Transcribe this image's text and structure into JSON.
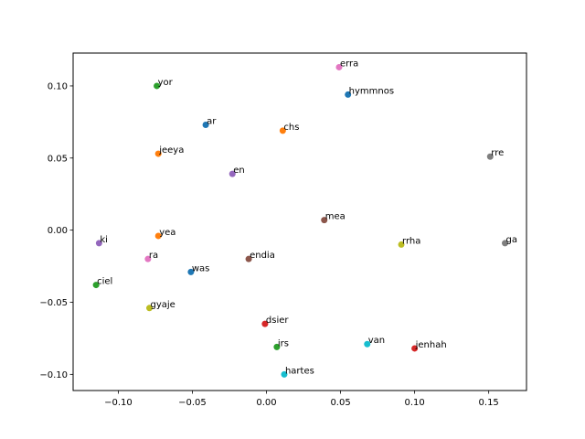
{
  "chart_data": {
    "type": "scatter",
    "title": "",
    "xlabel": "",
    "ylabel": "",
    "xlim": [
      -0.1305,
      0.1755
    ],
    "ylim": [
      -0.1112,
      0.1228
    ],
    "xticks": [
      -0.1,
      -0.05,
      0.0,
      0.05,
      0.1,
      0.15
    ],
    "xtick_labels": [
      "−0.10",
      "−0.05",
      "0.00",
      "0.05",
      "0.10",
      "0.15"
    ],
    "yticks": [
      -0.1,
      -0.05,
      0.0,
      0.05,
      0.1
    ],
    "ytick_labels": [
      "−0.10",
      "−0.05",
      "0.00",
      "0.05",
      "0.10"
    ],
    "grid": false,
    "points": [
      {
        "label": "erra",
        "x": 0.049,
        "y": 0.113,
        "color": "#e377c2"
      },
      {
        "label": "hymmnos",
        "x": 0.055,
        "y": 0.094,
        "color": "#1f77b4"
      },
      {
        "label": "yor",
        "x": -0.074,
        "y": 0.1,
        "color": "#2ca02c"
      },
      {
        "label": "ar",
        "x": -0.041,
        "y": 0.073,
        "color": "#1f77b4"
      },
      {
        "label": "chs",
        "x": 0.011,
        "y": 0.069,
        "color": "#ff7f0e"
      },
      {
        "label": "jeeya",
        "x": -0.073,
        "y": 0.053,
        "color": "#ff7f0e"
      },
      {
        "label": "rre",
        "x": 0.151,
        "y": 0.051,
        "color": "#7f7f7f"
      },
      {
        "label": "en",
        "x": -0.023,
        "y": 0.039,
        "color": "#9467bd"
      },
      {
        "label": "mea",
        "x": 0.039,
        "y": 0.007,
        "color": "#8c564b"
      },
      {
        "label": "yea",
        "x": -0.073,
        "y": -0.004,
        "color": "#ff7f0e"
      },
      {
        "label": "ki",
        "x": -0.113,
        "y": -0.009,
        "color": "#9467bd"
      },
      {
        "label": "ga",
        "x": 0.161,
        "y": -0.009,
        "color": "#7f7f7f"
      },
      {
        "label": "rrha",
        "x": 0.091,
        "y": -0.01,
        "color": "#bcbd22"
      },
      {
        "label": "ra",
        "x": -0.08,
        "y": -0.02,
        "color": "#e377c2"
      },
      {
        "label": "endia",
        "x": -0.012,
        "y": -0.02,
        "color": "#8c564b"
      },
      {
        "label": "was",
        "x": -0.051,
        "y": -0.029,
        "color": "#1f77b4"
      },
      {
        "label": "ciel",
        "x": -0.115,
        "y": -0.038,
        "color": "#2ca02c"
      },
      {
        "label": "gyaje",
        "x": -0.079,
        "y": -0.054,
        "color": "#bcbd22"
      },
      {
        "label": "dsier",
        "x": -0.001,
        "y": -0.065,
        "color": "#d62728"
      },
      {
        "label": "van",
        "x": 0.068,
        "y": -0.079,
        "color": "#17becf"
      },
      {
        "label": "irs",
        "x": 0.007,
        "y": -0.081,
        "color": "#2ca02c"
      },
      {
        "label": "jenhah",
        "x": 0.1,
        "y": -0.082,
        "color": "#d62728"
      },
      {
        "label": "hartes",
        "x": 0.012,
        "y": -0.1,
        "color": "#17becf"
      }
    ]
  }
}
